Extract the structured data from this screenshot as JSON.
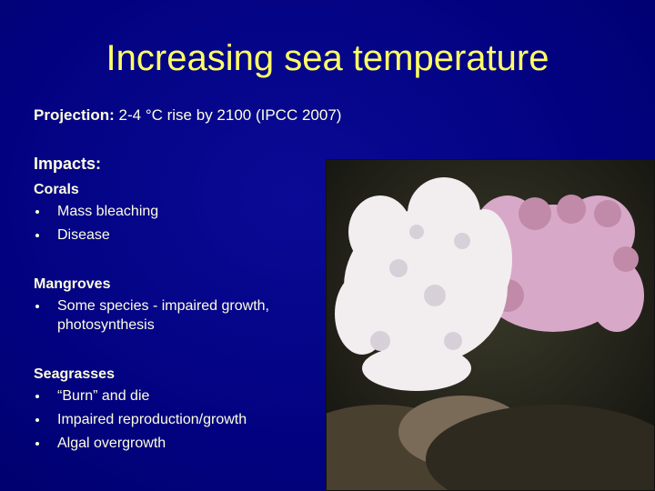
{
  "title": "Increasing sea temperature",
  "projection": {
    "label": "Projection:",
    "text": "2-4 °C rise by 2100 (IPCC 2007)"
  },
  "impacts_heading": "Impacts:",
  "sections": [
    {
      "heading": "Corals",
      "items": [
        "Mass bleaching",
        "Disease"
      ]
    },
    {
      "heading": "Mangroves",
      "items": [
        "Some species - impaired growth, photosynthesis"
      ]
    },
    {
      "heading": "Seagrasses",
      "items": [
        "“Burn” and die",
        "Impaired reproduction/growth",
        "Algal overgrowth"
      ]
    }
  ]
}
